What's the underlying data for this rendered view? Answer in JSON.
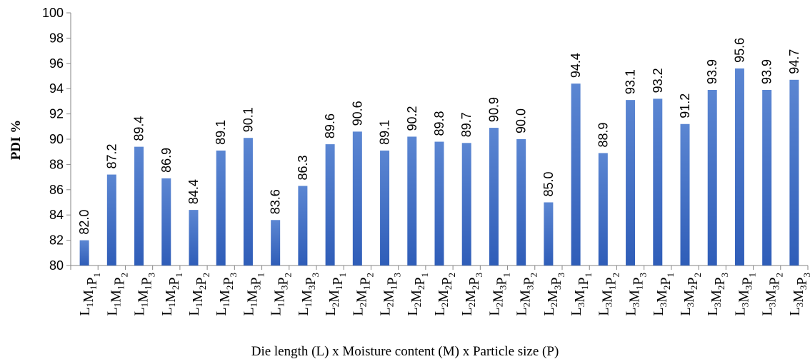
{
  "chart_data": {
    "type": "bar",
    "title": "",
    "xlabel": "Die length (L) x Moisture content (M) x Particle size (P)",
    "ylabel": "PDI %",
    "ylim": [
      80,
      100
    ],
    "yticks": [
      80,
      82,
      84,
      86,
      88,
      90,
      92,
      94,
      96,
      98,
      100
    ],
    "grid": false,
    "legend": "none",
    "bar_color": "#4472C4",
    "categories": [
      "L1M1P1",
      "L1M1P2",
      "L1M1P3",
      "L1M2P1",
      "L1M2P2",
      "L1M2P3",
      "L1M3P1",
      "L1M3P2",
      "L1M3P3",
      "L2M1P1",
      "L2M1P2",
      "L2M1P3",
      "L2M2P1",
      "L2M2P2",
      "L2M2P3",
      "L2M3P1",
      "L2M3P2",
      "L2M3P3",
      "L3M1P1",
      "L3M1P2",
      "L3M1P3",
      "L3M2P1",
      "L3M2P2",
      "L3M2P3",
      "L3M3P1",
      "L3M3P2",
      "L3M3P3"
    ],
    "values": [
      82.0,
      87.2,
      89.4,
      86.9,
      84.4,
      89.1,
      90.1,
      83.6,
      86.3,
      89.6,
      90.6,
      89.1,
      90.2,
      89.8,
      89.7,
      90.9,
      90.0,
      85.0,
      94.4,
      88.9,
      93.1,
      93.2,
      91.2,
      93.9,
      95.6,
      93.9,
      94.7
    ],
    "data_labels": [
      "82.0",
      "87.2",
      "89.4",
      "86.9",
      "84.4",
      "89.1",
      "90.1",
      "83.6",
      "86.3",
      "89.6",
      "90.6",
      "89.1",
      "90.2",
      "89.8",
      "89.7",
      "90.9",
      "90.0",
      "85.0",
      "94.4",
      "88.9",
      "93.1",
      "93.2",
      "91.2",
      "93.9",
      "95.6",
      "93.9",
      "94.7"
    ]
  }
}
